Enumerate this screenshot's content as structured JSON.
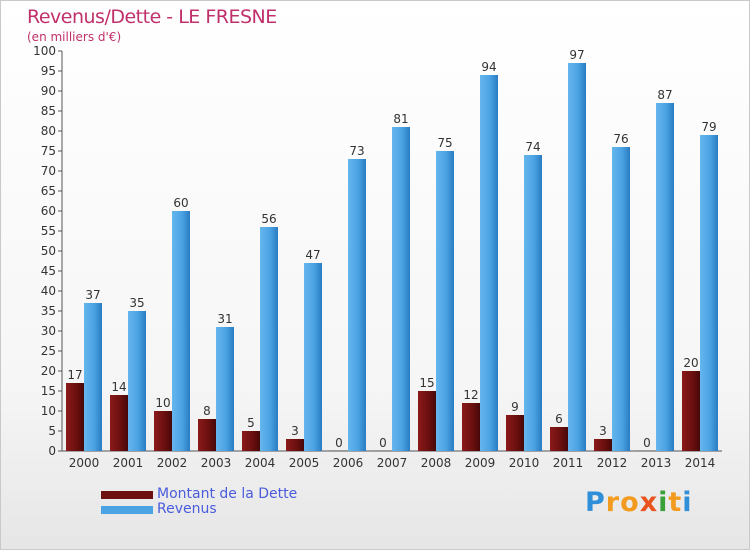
{
  "chart_data": {
    "type": "bar",
    "title": "Revenus/Dette - LE FRESNE",
    "subtitle": "(en milliers d'€)",
    "categories": [
      "2000",
      "2001",
      "2002",
      "2003",
      "2004",
      "2005",
      "2006",
      "2007",
      "2008",
      "2009",
      "2010",
      "2011",
      "2012",
      "2013",
      "2014"
    ],
    "series": [
      {
        "name": "Montant de la Dette",
        "color": "#6e1010",
        "values": [
          17,
          14,
          10,
          8,
          5,
          3,
          0,
          0,
          15,
          12,
          9,
          6,
          3,
          0,
          20
        ]
      },
      {
        "name": "Revenus",
        "color": "#4ba3e3",
        "values": [
          37,
          35,
          60,
          31,
          56,
          47,
          73,
          81,
          75,
          94,
          74,
          97,
          76,
          87,
          79
        ]
      }
    ],
    "ylim": [
      0,
      100
    ],
    "yticks": [
      0,
      5,
      10,
      15,
      20,
      25,
      30,
      35,
      40,
      45,
      50,
      55,
      60,
      65,
      70,
      75,
      80,
      85,
      90,
      95,
      100
    ],
    "xlabel": "",
    "ylabel": "",
    "grid": false,
    "legend_position": "bottom-left"
  },
  "brand": {
    "name": "Proxiti",
    "letters": [
      {
        "ch": "P",
        "color": "#2f8fd9"
      },
      {
        "ch": "r",
        "color": "#f39b1f"
      },
      {
        "ch": "o",
        "color": "#f39b1f"
      },
      {
        "ch": "x",
        "color": "#e8531e"
      },
      {
        "ch": "i",
        "color": "#3aa13a"
      },
      {
        "ch": "t",
        "color": "#f39b1f"
      },
      {
        "ch": "i",
        "color": "#2f8fd9"
      }
    ]
  }
}
